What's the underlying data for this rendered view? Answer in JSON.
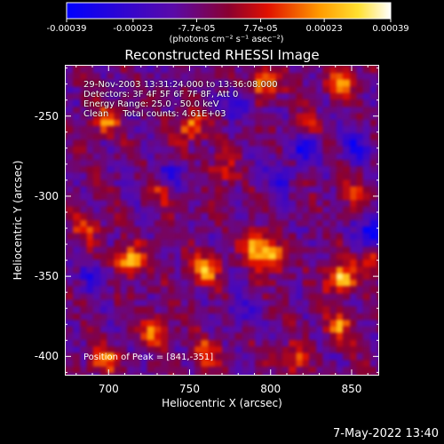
{
  "chart_data": {
    "type": "heatmap",
    "title": "Reconstructed RHESSI Image",
    "xlabel": "Heliocentric X (arcsec)",
    "ylabel": "Heliocentric Y (arcsec)",
    "xlim": [
      673,
      867
    ],
    "ylim": [
      -412,
      -218
    ],
    "xticks": [
      700,
      750,
      800,
      850
    ],
    "yticks": [
      -250,
      -300,
      -350,
      -400
    ],
    "colorbar": {
      "colormap": "blue-purple-red-yellow-white",
      "range": [
        -0.00039,
        0.00039
      ],
      "tick_values": [
        -0.00039,
        -0.00023,
        -7.7e-05,
        7.7e-05,
        0.00023,
        0.00039
      ],
      "tick_labels": [
        "-0.00039",
        "-0.00023",
        "-7.7e-05",
        "7.7e-05",
        "0.00023",
        "0.00039"
      ],
      "unit_label": "(photons cm⁻² s⁻¹ asec⁻²)"
    },
    "info_lines": [
      "29-Nov-2003 13:31:24.000 to 13:36:08.000",
      "Detectors: 3F 4F 5F 6F 7F 8F, Att 0",
      "Energy Range: 25.0 - 50.0 keV",
      "Clean     Total counts: 4.61E+03"
    ],
    "peak_text": "Position of Peak = [841,-351]",
    "peak": {
      "x": 841,
      "y": -351
    },
    "hot_spots": [
      {
        "x": 715,
        "y": -340,
        "value": 0.00036
      },
      {
        "x": 760,
        "y": -345,
        "value": 0.00033
      },
      {
        "x": 800,
        "y": -338,
        "value": 0.00034
      },
      {
        "x": 841,
        "y": -351,
        "value": 0.00039
      },
      {
        "x": 752,
        "y": -258,
        "value": 0.0003
      },
      {
        "x": 790,
        "y": -330,
        "value": 0.00032
      },
      {
        "x": 795,
        "y": -232,
        "value": 0.0003
      },
      {
        "x": 842,
        "y": -232,
        "value": 0.00028
      },
      {
        "x": 730,
        "y": -382,
        "value": 0.00026
      },
      {
        "x": 700,
        "y": -255,
        "value": 0.00024
      },
      {
        "x": 700,
        "y": -400,
        "value": 0.00025
      },
      {
        "x": 840,
        "y": -380,
        "value": 0.00024
      },
      {
        "x": 760,
        "y": -395,
        "value": 0.00022
      },
      {
        "x": 812,
        "y": -400,
        "value": 0.00022
      },
      {
        "x": 690,
        "y": -320,
        "value": 0.0002
      },
      {
        "x": 770,
        "y": -285,
        "value": 0.00018
      },
      {
        "x": 735,
        "y": -298,
        "value": 0.00017
      },
      {
        "x": 850,
        "y": -300,
        "value": 0.00018
      },
      {
        "x": 820,
        "y": -260,
        "value": 0.00016
      },
      {
        "x": 860,
        "y": -340,
        "value": 0.0002
      }
    ],
    "cold_spots": [
      {
        "x": 820,
        "y": -270,
        "value": -0.0003
      },
      {
        "x": 862,
        "y": -323,
        "value": -0.00039
      },
      {
        "x": 805,
        "y": -290,
        "value": -0.0002
      },
      {
        "x": 740,
        "y": -290,
        "value": -0.00018
      },
      {
        "x": 695,
        "y": -350,
        "value": -0.0002
      },
      {
        "x": 780,
        "y": -245,
        "value": -0.00016
      },
      {
        "x": 850,
        "y": -270,
        "value": -0.00022
      },
      {
        "x": 780,
        "y": -370,
        "value": -0.00015
      }
    ]
  },
  "date_stamp": "7-May-2022 13:40"
}
